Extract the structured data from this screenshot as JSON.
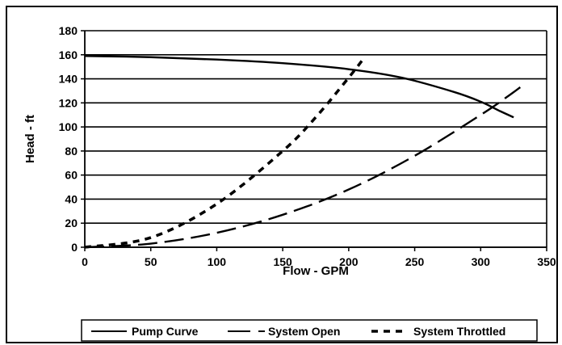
{
  "chart_data": {
    "type": "line",
    "title": "",
    "xlabel": "Flow - GPM",
    "ylabel": "Head - ft",
    "xlim": [
      0,
      350
    ],
    "ylim": [
      0,
      180
    ],
    "x_ticks": [
      0,
      50,
      100,
      150,
      200,
      250,
      300,
      350
    ],
    "y_ticks": [
      0,
      20,
      40,
      60,
      80,
      100,
      120,
      140,
      160,
      180
    ],
    "grid": "horizontal",
    "legend_position": "bottom",
    "series": [
      {
        "name": "Pump Curve",
        "style": "solid",
        "color": "#000000",
        "x": [
          0,
          50,
          100,
          150,
          200,
          240,
          280,
          300,
          315,
          325
        ],
        "y": [
          159,
          158,
          156,
          153,
          148,
          141,
          129,
          121,
          113,
          108
        ]
      },
      {
        "name": "System Open",
        "style": "long-dash",
        "color": "#000000",
        "x": [
          0,
          50,
          100,
          150,
          200,
          250,
          300,
          320,
          330
        ],
        "y": [
          0,
          3,
          12,
          27,
          48,
          76,
          110,
          125,
          133
        ]
      },
      {
        "name": "System Throttled",
        "style": "short-dash",
        "color": "#000000",
        "x": [
          0,
          50,
          100,
          150,
          175,
          200,
          210
        ],
        "y": [
          0,
          8,
          36,
          80,
          108,
          141,
          155
        ]
      }
    ]
  }
}
